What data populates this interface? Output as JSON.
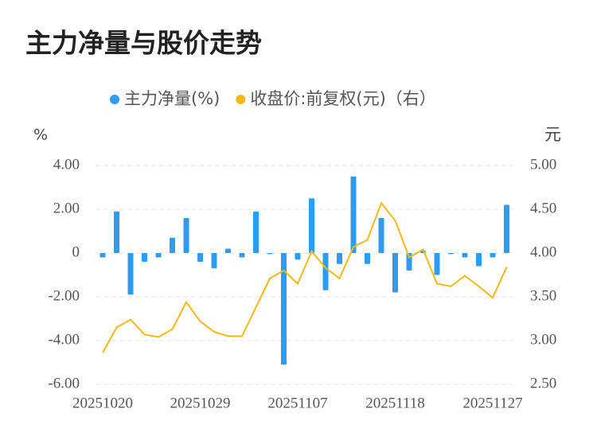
{
  "chart_data": {
    "type": "bar_line",
    "title": "主力净量与股价走势",
    "y_label": "%",
    "y2_label": "元",
    "categories": [
      "20251020",
      null,
      null,
      null,
      null,
      null,
      null,
      "20251029",
      null,
      null,
      null,
      null,
      null,
      null,
      "20251107",
      null,
      null,
      null,
      null,
      null,
      null,
      "20251118",
      null,
      null,
      null,
      null,
      null,
      null,
      "20251127",
      null
    ],
    "series": [
      {
        "name": "主力净量(%)",
        "color": "#2e9cf0",
        "type": "bar",
        "values": [
          -0.2,
          1.9,
          -1.9,
          -0.4,
          -0.2,
          0.7,
          1.6,
          -0.4,
          -0.7,
          0.2,
          -0.2,
          1.9,
          -0.05,
          -5.1,
          -0.3,
          2.5,
          -1.7,
          -0.5,
          3.5,
          -0.5,
          1.6,
          -1.8,
          -0.8,
          0.1,
          -1.0,
          -0.05,
          -0.2,
          -0.6,
          -0.2,
          2.2
        ]
      },
      {
        "name": "收盘价:前复权(元)（右）",
        "color": "#f5b916",
        "type": "line",
        "axis": "y2",
        "values": [
          2.86,
          3.15,
          3.24,
          3.07,
          3.04,
          3.13,
          3.44,
          3.22,
          3.1,
          3.05,
          3.05,
          3.38,
          3.71,
          3.8,
          3.65,
          4.02,
          3.83,
          3.71,
          4.07,
          4.15,
          4.57,
          4.37,
          3.95,
          4.04,
          3.65,
          3.62,
          3.74,
          3.62,
          3.49,
          3.84
        ]
      }
    ],
    "ylim": [
      -6,
      4
    ],
    "yticks": [
      {
        "value": 4,
        "label": "4.00"
      },
      {
        "value": 2,
        "label": "2.00"
      },
      0,
      {
        "value": -2,
        "label": "-2.00"
      },
      {
        "value": -4,
        "label": "-4.00"
      },
      {
        "value": -6,
        "label": "-6.00"
      }
    ],
    "y2lim": [
      2.5,
      5
    ],
    "y2ticks": [
      {
        "value": 5,
        "label": "5.00"
      },
      {
        "value": 4.5,
        "label": "4.50"
      },
      {
        "value": 4,
        "label": "4.00"
      },
      {
        "value": 3.5,
        "label": "3.50"
      },
      {
        "value": 3,
        "label": "3.00"
      },
      {
        "value": 2.5,
        "label": "2.50"
      }
    ],
    "grid": true
  }
}
